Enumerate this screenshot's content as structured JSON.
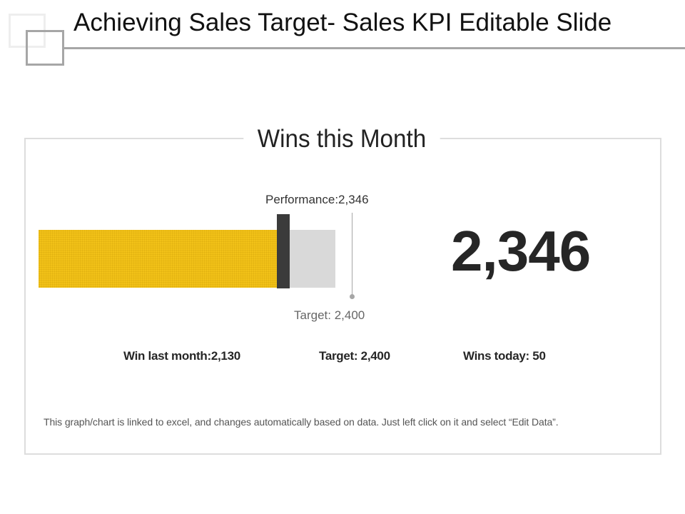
{
  "slide": {
    "title": "Achieving Sales Target- Sales KPI Editable Slide"
  },
  "panel": {
    "title": "Wins this Month",
    "performance_label": "Performance:2,346",
    "target_label": "Target: 2,400",
    "big_number": "2,346",
    "stats": [
      {
        "label": "Win last month:2,130"
      },
      {
        "label": "Target: 2,400"
      },
      {
        "label": "Wins today: 50"
      }
    ],
    "footnote": "This graph/chart is linked to excel, and changes automatically  based on data. Just left click on it and select “Edit Data”."
  },
  "colors": {
    "fill": "#f2c218",
    "remaining": "#d9d9d9",
    "marker": "#3b3b3b",
    "target_line": "#a6a6a6"
  },
  "chart_data": {
    "type": "bar",
    "orientation": "horizontal",
    "title": "Wins this Month",
    "categories": [
      "Wins this Month"
    ],
    "series": [
      {
        "name": "Performance",
        "values": [
          2346
        ]
      },
      {
        "name": "Target",
        "values": [
          2400
        ]
      }
    ],
    "annotations": [
      "Performance:2,346",
      "Target: 2,400"
    ],
    "kpis": {
      "win_last_month": 2130,
      "target": 2400,
      "wins_today": 50,
      "wins_this_month": 2346
    },
    "xlim": [
      0,
      2400
    ],
    "grid": false,
    "legend": "none"
  }
}
